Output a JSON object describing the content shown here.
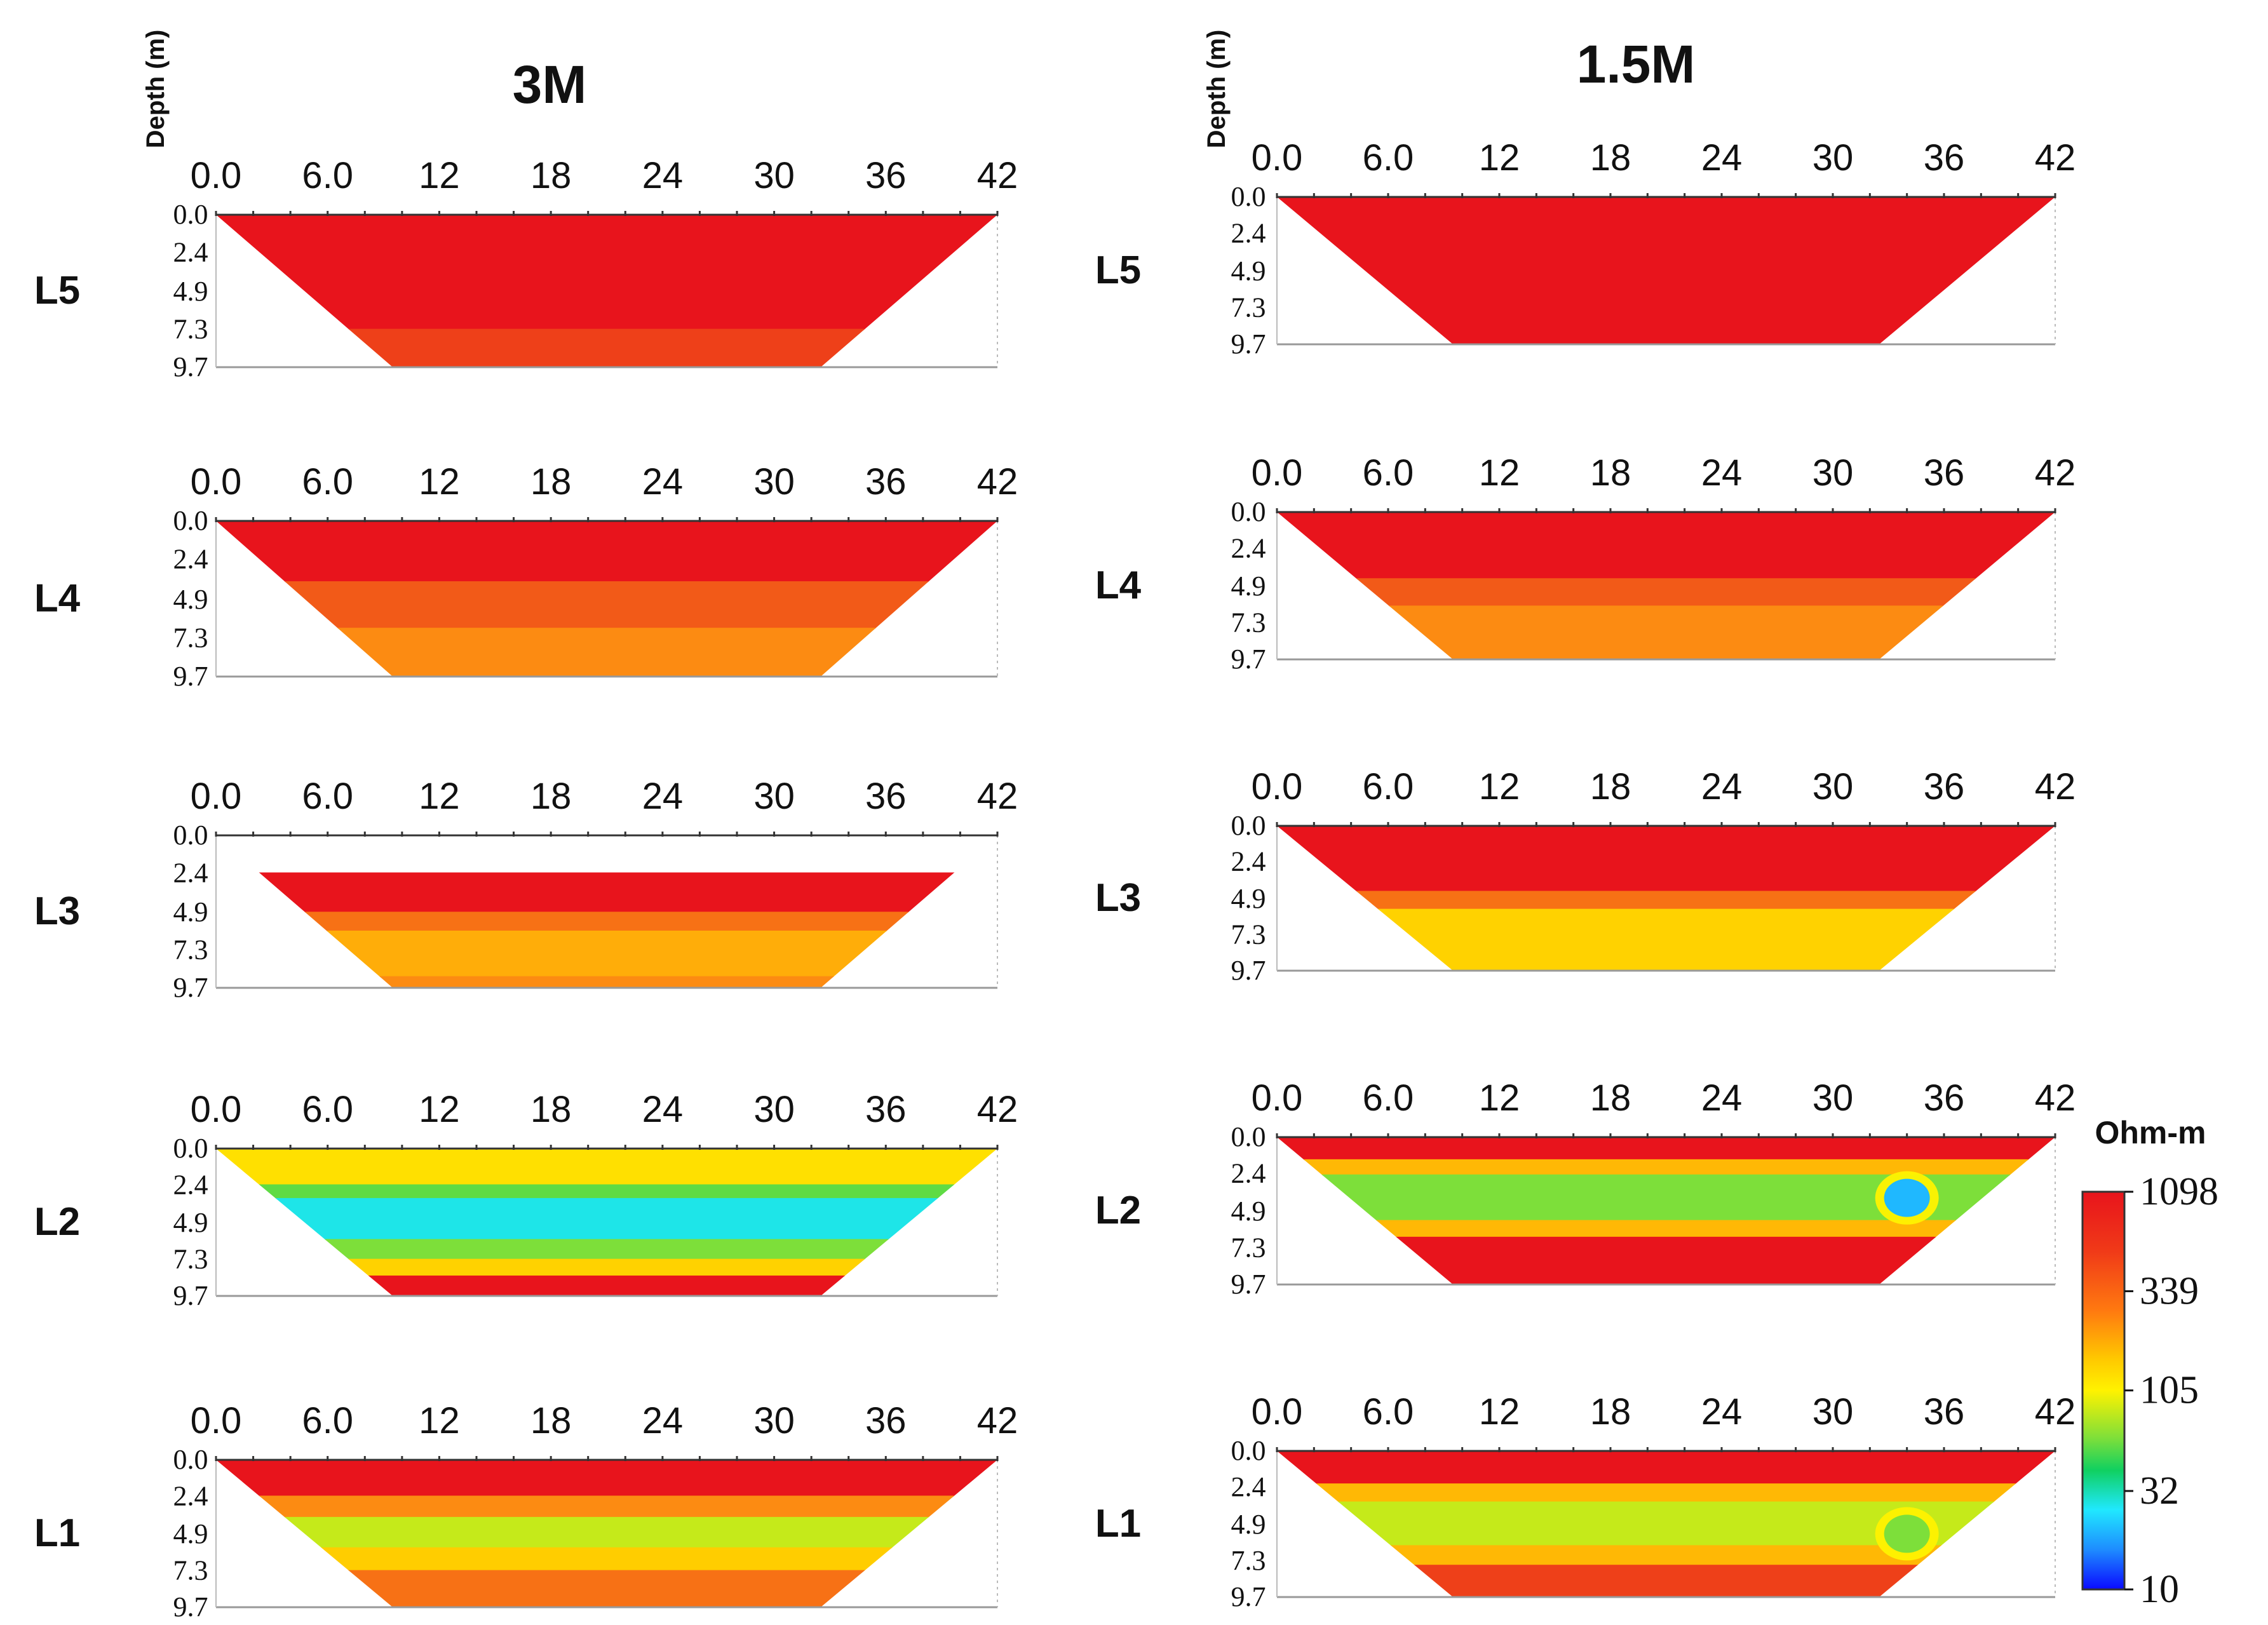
{
  "chart_data": {
    "type": "heatmap",
    "columns": [
      {
        "title": "3M",
        "ylabel": "Depth (m)",
        "panels": [
          {
            "label": "L5",
            "x_ticks": [
              "0.0",
              "6.0",
              "12",
              "18",
              "24",
              "30",
              "36",
              "42"
            ],
            "depth_ticks": [
              "0.0",
              "2.4",
              "4.9",
              "7.3",
              "9.7"
            ],
            "layers": [
              {
                "depth": [
                  0,
                  7.3
                ],
                "ohm_m": 1098
              },
              {
                "depth": [
                  7.3,
                  9.7
                ],
                "ohm_m": 900
              }
            ]
          },
          {
            "label": "L4",
            "x_ticks": [
              "0.0",
              "6.0",
              "12",
              "18",
              "24",
              "30",
              "36",
              "42"
            ],
            "depth_ticks": [
              "0.0",
              "2.4",
              "4.9",
              "7.3",
              "9.7"
            ],
            "layers": [
              {
                "depth": [
                  0,
                  3.8
                ],
                "ohm_m": 1098
              },
              {
                "depth": [
                  3.8,
                  6.7
                ],
                "ohm_m": 800
              },
              {
                "depth": [
                  6.7,
                  9.7
                ],
                "ohm_m": 600
              }
            ]
          },
          {
            "label": "L3",
            "x_ticks": [
              "0.0",
              "6.0",
              "12",
              "18",
              "24",
              "30",
              "36",
              "42"
            ],
            "depth_ticks": [
              "0.0",
              "2.4",
              "4.9",
              "7.3",
              "9.7"
            ],
            "layers": [
              {
                "depth": [
                  2.4,
                  4.9
                ],
                "ohm_m": 1098
              },
              {
                "depth": [
                  4.9,
                  6.1
                ],
                "ohm_m": 700
              },
              {
                "depth": [
                  6.1,
                  9.0
                ],
                "ohm_m": 450
              },
              {
                "depth": [
                  9.0,
                  9.7
                ],
                "ohm_m": 600
              }
            ]
          },
          {
            "label": "L2",
            "x_ticks": [
              "0.0",
              "6.0",
              "12",
              "18",
              "24",
              "30",
              "36",
              "42"
            ],
            "depth_ticks": [
              "0.0",
              "2.4",
              "4.9",
              "7.3",
              "9.7"
            ],
            "layers": [
              {
                "depth": [
                  0,
                  2.4
                ],
                "ohm_m": 250
              },
              {
                "depth": [
                  2.4,
                  3.3
                ],
                "ohm_m": 90
              },
              {
                "depth": [
                  3.3,
                  6.0
                ],
                "ohm_m": 35
              },
              {
                "depth": [
                  6.0,
                  7.3
                ],
                "ohm_m": 105
              },
              {
                "depth": [
                  7.3,
                  8.4
                ],
                "ohm_m": 300
              },
              {
                "depth": [
                  8.4,
                  9.7
                ],
                "ohm_m": 1098
              }
            ]
          },
          {
            "label": "L1",
            "x_ticks": [
              "0.0",
              "6.0",
              "12",
              "18",
              "24",
              "30",
              "36",
              "42"
            ],
            "depth_ticks": [
              "0.0",
              "2.4",
              "4.9",
              "7.3",
              "9.7"
            ],
            "layers": [
              {
                "depth": [
                  0,
                  2.4
                ],
                "ohm_m": 1098
              },
              {
                "depth": [
                  2.4,
                  3.8
                ],
                "ohm_m": 600
              },
              {
                "depth": [
                  3.8,
                  5.8
                ],
                "ohm_m": 150
              },
              {
                "depth": [
                  5.8,
                  7.3
                ],
                "ohm_m": 320
              },
              {
                "depth": [
                  7.3,
                  9.7
                ],
                "ohm_m": 700
              }
            ]
          }
        ]
      },
      {
        "title": "1.5M",
        "ylabel": "Depth (m)",
        "panels": [
          {
            "label": "L5",
            "x_ticks": [
              "0.0",
              "6.0",
              "12",
              "18",
              "24",
              "30",
              "36",
              "42"
            ],
            "depth_ticks": [
              "0.0",
              "2.4",
              "4.9",
              "7.3",
              "9.7"
            ],
            "layers": [
              {
                "depth": [
                  0,
                  9.7
                ],
                "ohm_m": 1098
              }
            ]
          },
          {
            "label": "L4",
            "x_ticks": [
              "0.0",
              "6.0",
              "12",
              "18",
              "24",
              "30",
              "36",
              "42"
            ],
            "depth_ticks": [
              "0.0",
              "2.4",
              "4.9",
              "7.3",
              "9.7"
            ],
            "layers": [
              {
                "depth": [
                  0,
                  4.4
                ],
                "ohm_m": 1098
              },
              {
                "depth": [
                  4.4,
                  6.2
                ],
                "ohm_m": 800
              },
              {
                "depth": [
                  6.2,
                  9.7
                ],
                "ohm_m": 600
              }
            ]
          },
          {
            "label": "L3",
            "x_ticks": [
              "0.0",
              "6.0",
              "12",
              "18",
              "24",
              "30",
              "36",
              "42"
            ],
            "depth_ticks": [
              "0.0",
              "2.4",
              "4.9",
              "7.3",
              "9.7"
            ],
            "layers": [
              {
                "depth": [
                  0,
                  4.4
                ],
                "ohm_m": 1098
              },
              {
                "depth": [
                  4.4,
                  5.6
                ],
                "ohm_m": 700
              },
              {
                "depth": [
                  5.6,
                  9.7
                ],
                "ohm_m": 300
              }
            ]
          },
          {
            "label": "L2",
            "x_ticks": [
              "0.0",
              "6.0",
              "12",
              "18",
              "24",
              "30",
              "36",
              "42"
            ],
            "depth_ticks": [
              "0.0",
              "2.4",
              "4.9",
              "7.3",
              "9.7"
            ],
            "layers": [
              {
                "depth": [
                  0,
                  1.5
                ],
                "ohm_m": 1098
              },
              {
                "depth": [
                  1.5,
                  2.5
                ],
                "ohm_m": 400
              },
              {
                "depth": [
                  2.5,
                  5.5
                ],
                "ohm_m": 105
              },
              {
                "depth": [
                  5.5,
                  6.6
                ],
                "ohm_m": 400
              },
              {
                "depth": [
                  6.6,
                  9.7
                ],
                "ohm_m": 1098
              }
            ],
            "anomaly": {
              "x": 34,
              "depth": 4,
              "ohm_m": 25
            }
          },
          {
            "label": "L1",
            "x_ticks": [
              "0.0",
              "6.0",
              "12",
              "18",
              "24",
              "30",
              "36",
              "42"
            ],
            "depth_ticks": [
              "0.0",
              "2.4",
              "4.9",
              "7.3",
              "9.7"
            ],
            "layers": [
              {
                "depth": [
                  0,
                  2.2
                ],
                "ohm_m": 1098
              },
              {
                "depth": [
                  2.2,
                  3.4
                ],
                "ohm_m": 400
              },
              {
                "depth": [
                  3.4,
                  6.3
                ],
                "ohm_m": 150
              },
              {
                "depth": [
                  6.3,
                  7.6
                ],
                "ohm_m": 400
              },
              {
                "depth": [
                  7.6,
                  9.7
                ],
                "ohm_m": 900
              }
            ],
            "anomaly": {
              "x": 34,
              "depth": 5.5,
              "ohm_m": 105
            }
          }
        ]
      }
    ],
    "colorbar": {
      "unit": "Ohm-m",
      "ticks": [
        "1098",
        "339",
        "105",
        "32",
        "10"
      ],
      "range": [
        10,
        1098
      ],
      "scale": "log"
    },
    "x_range": [
      0,
      42
    ],
    "depth_range": [
      0,
      9.7
    ]
  }
}
